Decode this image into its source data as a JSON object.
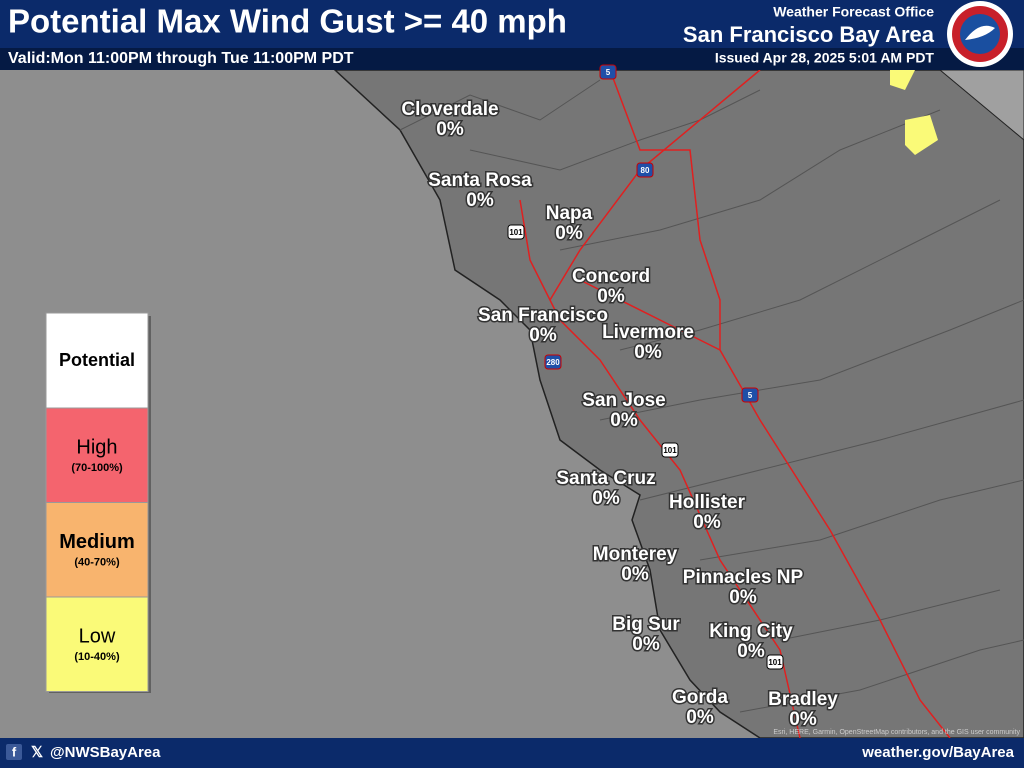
{
  "header": {
    "title": "Potential Max Wind Gust >= 40 mph",
    "valid": "Valid:Mon 11:00PM through Tue 11:00PM PDT",
    "office": "Weather Forecast Office",
    "area": "San Francisco Bay Area",
    "issued": "Issued Apr 28, 2025 5:01 AM PDT"
  },
  "legend": {
    "title": "Potential",
    "items": [
      {
        "label": "High",
        "range": "(70-100%)",
        "color": "#f4646e"
      },
      {
        "label": "Medium",
        "range": "(40-70%)",
        "color": "#f8b46e"
      },
      {
        "label": "Low",
        "range": "(10-40%)",
        "color": "#fafa78"
      }
    ]
  },
  "cities": [
    {
      "name": "Cloverdale",
      "value": "0%"
    },
    {
      "name": "Santa Rosa",
      "value": "0%"
    },
    {
      "name": "Napa",
      "value": "0%"
    },
    {
      "name": "Concord",
      "value": "0%"
    },
    {
      "name": "San Francisco",
      "value": "0%"
    },
    {
      "name": "Livermore",
      "value": "0%"
    },
    {
      "name": "San Jose",
      "value": "0%"
    },
    {
      "name": "Santa Cruz",
      "value": "0%"
    },
    {
      "name": "Hollister",
      "value": "0%"
    },
    {
      "name": "Monterey",
      "value": "0%"
    },
    {
      "name": "Pinnacles NP",
      "value": "0%"
    },
    {
      "name": "Big Sur",
      "value": "0%"
    },
    {
      "name": "King City",
      "value": "0%"
    },
    {
      "name": "Gorda",
      "value": "0%"
    },
    {
      "name": "Bradley",
      "value": "0%"
    }
  ],
  "shields": [
    "5",
    "80",
    "101",
    "280",
    "5",
    "101",
    "101"
  ],
  "attribution": "Esri, HERE, Garmin, OpenStreetMap contributors, and the GIS user community",
  "footer": {
    "handle": "@NWSBayArea",
    "url": "weather.gov/BayArea"
  }
}
